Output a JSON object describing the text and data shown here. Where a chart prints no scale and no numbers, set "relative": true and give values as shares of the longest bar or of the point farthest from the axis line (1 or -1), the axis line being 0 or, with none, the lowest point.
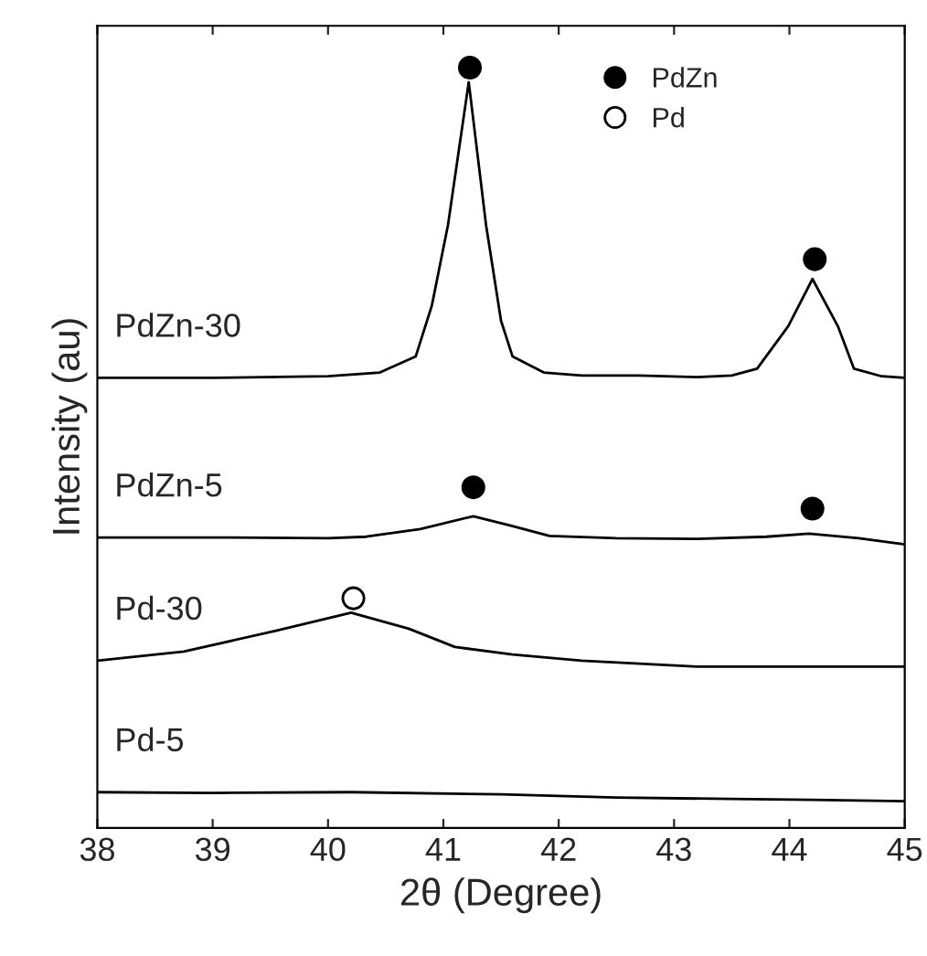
{
  "chart_data": {
    "type": "line",
    "relative": true,
    "xlabel": "2θ (Degree)",
    "ylabel": "Intensity (au)",
    "xlim": [
      38,
      45
    ],
    "xticks": [
      38,
      39,
      40,
      41,
      42,
      43,
      44,
      45
    ],
    "grid": false,
    "legend": "top right",
    "marker": "none",
    "line_style": "solid",
    "series": [
      {
        "name": "PdZn-30",
        "color": "#000000",
        "x": [
          38,
          39,
          40,
          40.45,
          40.76,
          40.9,
          41.04,
          41.22,
          41.37,
          41.5,
          41.6,
          41.87,
          42.2,
          42.7,
          43.2,
          43.5,
          43.72,
          43.99,
          44.2,
          44.42,
          44.56,
          44.8,
          45
        ],
        "values": [
          0.592,
          0.592,
          0.594,
          0.599,
          0.62,
          0.687,
          0.793,
          0.981,
          0.793,
          0.667,
          0.62,
          0.599,
          0.595,
          0.595,
          0.593,
          0.595,
          0.604,
          0.66,
          0.722,
          0.66,
          0.604,
          0.594,
          0.592
        ]
      },
      {
        "name": "PdZn-5",
        "color": "#000000",
        "x": [
          38,
          39,
          40,
          40.33,
          40.8,
          41.26,
          41.6,
          41.92,
          42.5,
          43.2,
          43.8,
          44.17,
          44.6,
          45
        ],
        "values": [
          0.382,
          0.382,
          0.381,
          0.383,
          0.393,
          0.41,
          0.397,
          0.384,
          0.381,
          0.38,
          0.383,
          0.387,
          0.381,
          0.373
        ]
      },
      {
        "name": "Pd-30",
        "color": "#000000",
        "x": [
          38,
          38.75,
          39.54,
          40.2,
          40.7,
          41.1,
          41.6,
          42.2,
          43.2,
          44,
          45
        ],
        "values": [
          0.22,
          0.232,
          0.259,
          0.283,
          0.262,
          0.238,
          0.228,
          0.22,
          0.212,
          0.212,
          0.212
        ]
      },
      {
        "name": "Pd-5",
        "color": "#000000",
        "x": [
          38,
          39,
          40.2,
          41.5,
          42.5,
          43.5,
          44.2,
          45
        ],
        "values": [
          0.047,
          0.046,
          0.047,
          0.044,
          0.04,
          0.038,
          0.037,
          0.035
        ]
      },
      {
        "name": "PdZn",
        "type": "scatter",
        "marker": "circle",
        "color": "#000000",
        "x": [
          41.23,
          44.22,
          41.26,
          44.2
        ],
        "values": [
          1.0,
          0.748,
          0.448,
          0.42
        ]
      },
      {
        "name": "Pd",
        "type": "scatter",
        "marker": "circle",
        "color": "#ffffff",
        "x": [
          40.22
        ],
        "values": [
          0.302
        ]
      }
    ]
  }
}
